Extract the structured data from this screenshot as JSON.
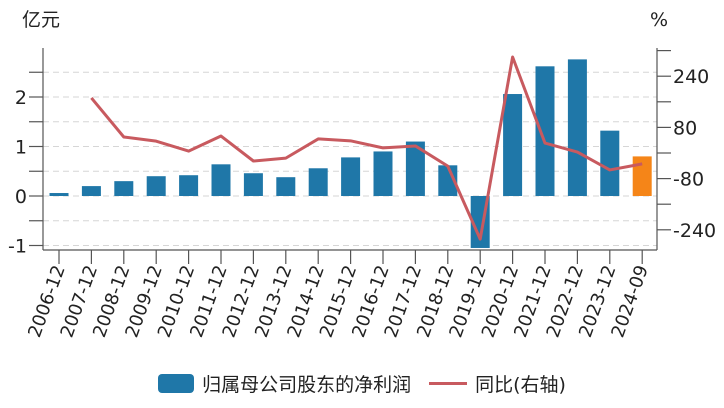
{
  "chart_data": {
    "type": "bar+line",
    "title": "",
    "left_axis": {
      "label": "亿元",
      "ticks": [
        -1,
        0,
        1,
        2
      ],
      "minor_ticks": [
        -1,
        -0.5,
        0,
        0.5,
        1,
        1.5,
        2,
        2.5
      ],
      "range": [
        -1.02,
        2.98
      ]
    },
    "right_axis": {
      "label": "%",
      "ticks": [
        240,
        80,
        -80,
        -240
      ],
      "minor_ticks": [
        320,
        240,
        160,
        80,
        0,
        -80,
        -160,
        -240
      ],
      "range": [
        -248,
        392
      ]
    },
    "categories": [
      "2006-12",
      "2007-12",
      "2008-12",
      "2009-12",
      "2010-12",
      "2011-12",
      "2012-12",
      "2013-12",
      "2014-12",
      "2015-12",
      "2016-12",
      "2017-12",
      "2018-12",
      "2019-12",
      "2020-12",
      "2021-12",
      "2022-12",
      "2023-12",
      "2024-09"
    ],
    "series": [
      {
        "name": "归属母公司股东的净利润",
        "type": "bar",
        "axis": "left",
        "color": "#1f77a8",
        "highlight_last_color": "#f58518",
        "values": [
          0.06,
          0.2,
          0.3,
          0.4,
          0.42,
          0.64,
          0.46,
          0.38,
          0.56,
          0.78,
          0.9,
          1.1,
          0.62,
          -1.05,
          2.06,
          2.62,
          2.76,
          1.32,
          0.8
        ]
      },
      {
        "name": "同比(右轴)",
        "type": "line",
        "axis": "right",
        "color": "#c85a5f",
        "values": [
          null,
          172,
          50,
          37,
          6,
          53,
          -25,
          -16,
          44,
          38,
          16,
          22,
          -41,
          -269,
          300,
          31,
          3,
          -53,
          -34
        ]
      }
    ],
    "grid": "horizontal dashed",
    "legend_position": "bottom"
  },
  "legend": {
    "bar_label": "归属母公司股东的净利润",
    "line_label": "同比(右轴)"
  },
  "axes": {
    "left_unit": "亿元",
    "right_unit": "%"
  }
}
